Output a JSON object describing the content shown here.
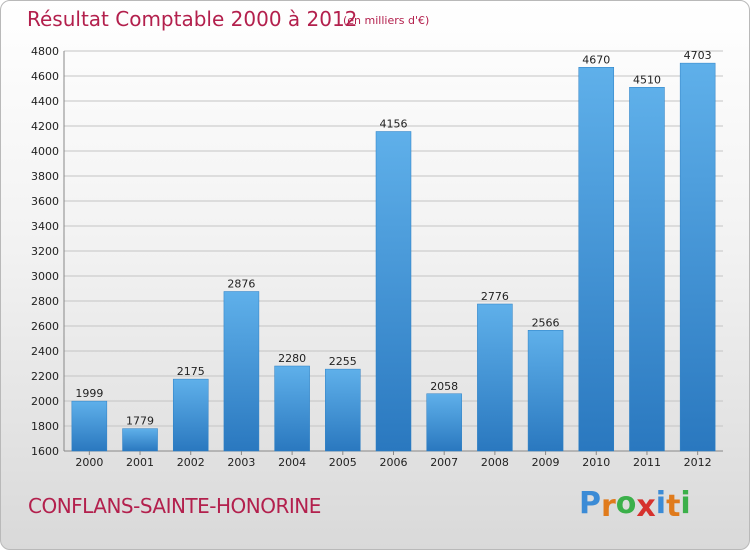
{
  "title": "Résultat Comptable 2000 à 2012",
  "subtitle": "(en milliers d'€)",
  "city": "CONFLANS-SAINTE-HONORINE",
  "logo": {
    "letters": [
      "P",
      "r",
      "o",
      "x",
      "i",
      "t",
      "i"
    ],
    "colors": [
      "#3b8bd6",
      "#e07b1c",
      "#3bb04a",
      "#d6322e",
      "#3b8bd6",
      "#e07b1c",
      "#3bb04a"
    ]
  },
  "colors": {
    "bar": "#3a95da",
    "bar_light": "#5fb0ea",
    "bar_dark": "#2a78bf",
    "grid": "#c4c4c4"
  },
  "chart_data": {
    "type": "bar",
    "categories": [
      "2000",
      "2001",
      "2002",
      "2003",
      "2004",
      "2005",
      "2006",
      "2007",
      "2008",
      "2009",
      "2010",
      "2011",
      "2012"
    ],
    "values": [
      1999,
      1779,
      2175,
      2876,
      2280,
      2255,
      4156,
      2058,
      2776,
      2566,
      4670,
      4510,
      4703
    ],
    "ylim": [
      1600,
      4800
    ],
    "yticks": [
      1600,
      1800,
      2000,
      2200,
      2400,
      2600,
      2800,
      3000,
      3200,
      3400,
      3600,
      3800,
      4000,
      4200,
      4400,
      4600,
      4800
    ],
    "grid": true
  }
}
